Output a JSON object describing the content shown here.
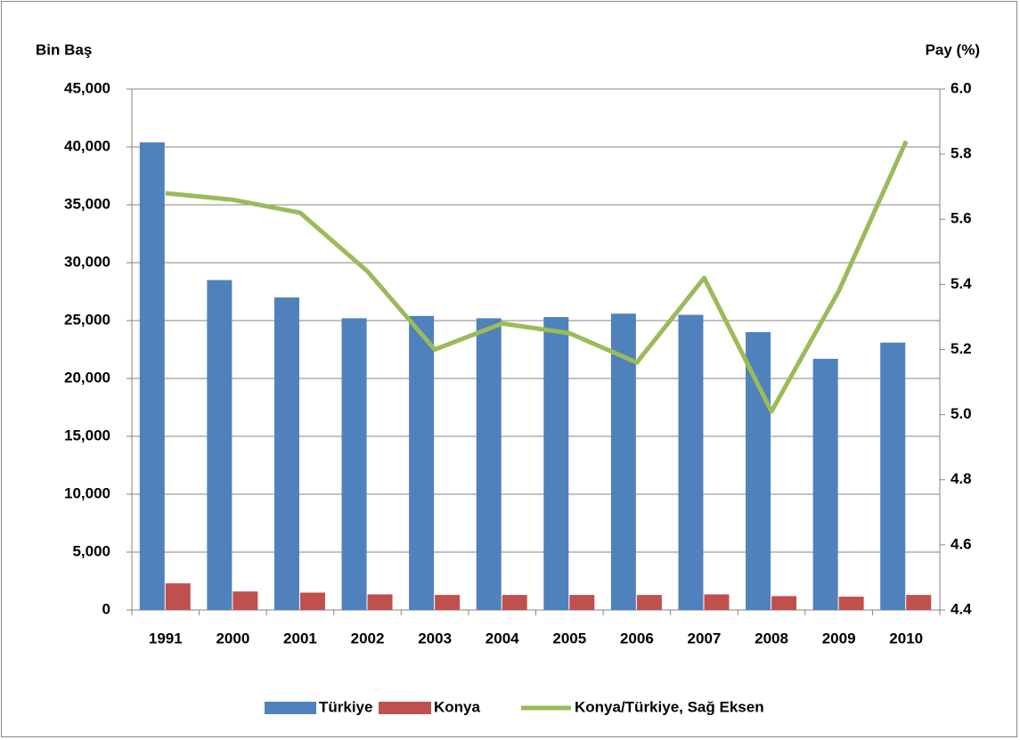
{
  "chart_data": {
    "type": "bar",
    "y_label": "Bin Baş",
    "y2_label": "Pay (%)",
    "categories": [
      "1991",
      "2000",
      "2001",
      "2002",
      "2003",
      "2004",
      "2005",
      "2006",
      "2007",
      "2008",
      "2009",
      "2010"
    ],
    "series": [
      {
        "name": "Türkiye",
        "color": "#4f81bd",
        "type": "bar",
        "values": [
          40400,
          28500,
          27000,
          25200,
          25400,
          25200,
          25300,
          25600,
          25500,
          24000,
          21700,
          23100
        ]
      },
      {
        "name": "Konya",
        "color": "#c0504d",
        "type": "bar",
        "values": [
          2300,
          1600,
          1500,
          1350,
          1300,
          1300,
          1300,
          1300,
          1350,
          1200,
          1150,
          1300
        ]
      },
      {
        "name": "Konya/Türkiye, Sağ Eksen",
        "color": "#9bbb59",
        "type": "line",
        "axis": "y2",
        "values": [
          5.68,
          5.66,
          5.62,
          5.44,
          5.2,
          5.28,
          5.25,
          5.16,
          5.42,
          5.01,
          5.38,
          5.84
        ]
      }
    ],
    "ylim": [
      0,
      45000
    ],
    "yticks": [
      0,
      {
        "value": 5000,
        "label": "5,000"
      },
      {
        "value": 10000,
        "label": "10,000"
      },
      {
        "value": 15000,
        "label": "15,000"
      },
      {
        "value": 20000,
        "label": "20,000"
      },
      {
        "value": 25000,
        "label": "25,000"
      },
      {
        "value": 30000,
        "label": "30,000"
      },
      {
        "value": 35000,
        "label": "35,000"
      },
      {
        "value": 40000,
        "label": "40,000"
      },
      {
        "value": 45000,
        "label": "45,000"
      }
    ],
    "y2lim": [
      4.4,
      6.0
    ],
    "y2ticks": [
      4.4,
      4.6,
      4.8,
      {
        "value": 5.0,
        "label": "5.0"
      },
      5.2,
      5.4,
      5.6,
      5.8,
      {
        "value": 6.0,
        "label": "6.0"
      }
    ],
    "grid": true,
    "legend": "bottom"
  }
}
